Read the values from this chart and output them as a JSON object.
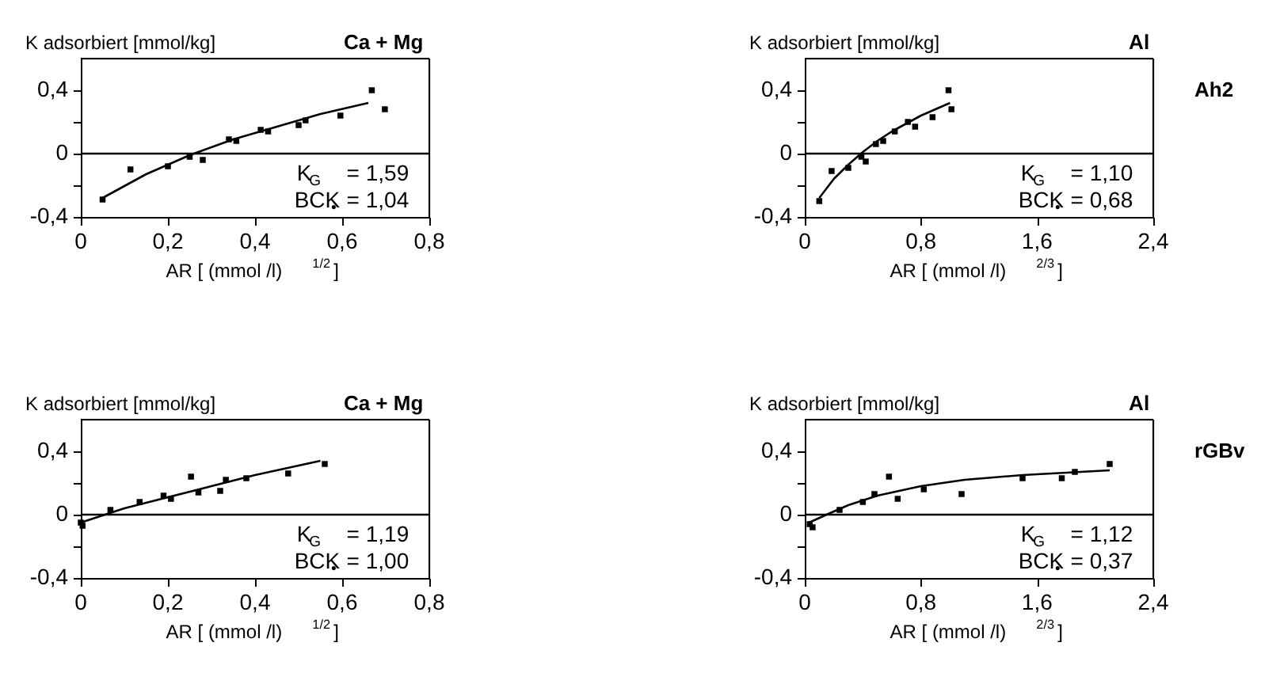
{
  "chart_data": [
    {
      "type": "scatter",
      "title": "Ca + Mg",
      "ylabel": "K adsorbiert [mmol/kg]",
      "xlabel": "AR [ (mmol /l)$^{1/2}$]",
      "xlim": [
        0,
        0.8
      ],
      "xticks": [
        0,
        {
          "value": 0.2,
          "label": "0,2"
        },
        {
          "value": 0.4,
          "label": "0,4"
        },
        {
          "value": 0.6,
          "label": "0,6"
        },
        {
          "value": 0.8,
          "label": "0,8"
        }
      ],
      "ylim": [
        -0.4,
        0.6
      ],
      "yticks": [
        {
          "value": -0.4,
          "label": "-0,4"
        },
        {
          "value": -0.2,
          "label": null
        },
        0,
        {
          "value": 0.2,
          "label": null
        },
        {
          "value": 0.4,
          "label": "0,4"
        }
      ],
      "grid": false,
      "ref_lines": [
        {
          "axis": "y",
          "value": 0,
          "color": "#000000"
        }
      ],
      "annotations": [
        "K$_{G}$    = 1,59",
        "BCK$_{•}$ = 1,04"
      ],
      "series": [
        {
          "marker": "square",
          "color": "#000000",
          "x": [
            0.05,
            0.114,
            0.2,
            0.25,
            0.28,
            0.34,
            0.357,
            0.413,
            0.43,
            0.5,
            0.516,
            0.596,
            0.668,
            0.698
          ],
          "values": [
            -0.29,
            -0.1,
            -0.08,
            -0.02,
            -0.04,
            0.09,
            0.08,
            0.15,
            0.14,
            0.18,
            0.21,
            0.24,
            0.4,
            0.28
          ]
        },
        {
          "type": "line",
          "color": "#000000",
          "x": [
            0.05,
            0.15,
            0.25,
            0.35,
            0.45,
            0.55,
            0.66
          ],
          "values": [
            -0.28,
            -0.13,
            -0.01,
            0.09,
            0.17,
            0.25,
            0.32
          ]
        }
      ]
    },
    {
      "type": "scatter",
      "title": "Al",
      "ylabel": "K adsorbiert [mmol/kg]",
      "xlabel": "AR [ (mmol /l)$^{2/3}$]",
      "xlim": [
        0,
        2.4
      ],
      "xticks": [
        0,
        {
          "value": 0.8,
          "label": "0,8"
        },
        {
          "value": 1.6,
          "label": "1,6"
        },
        {
          "value": 2.4,
          "label": "2,4"
        }
      ],
      "ylim": [
        -0.4,
        0.6
      ],
      "yticks": [
        {
          "value": -0.4,
          "label": "-0,4"
        },
        {
          "value": -0.2,
          "label": null
        },
        0,
        {
          "value": 0.2,
          "label": null
        },
        {
          "value": 0.4,
          "label": "0,4"
        }
      ],
      "grid": false,
      "ref_lines": [
        {
          "axis": "y",
          "value": 0,
          "color": "#000000"
        }
      ],
      "annotations": [
        "K$_{G}$    = 1,10",
        "BCK$_{•}$ = 0,68",
        "Ah2"
      ],
      "series": [
        {
          "marker": "square",
          "color": "#000000",
          "x": [
            0.1,
            0.185,
            0.3,
            0.39,
            0.42,
            0.49,
            0.54,
            0.62,
            0.71,
            0.76,
            0.88,
            0.99,
            1.01
          ],
          "values": [
            -0.3,
            -0.11,
            -0.09,
            -0.02,
            -0.05,
            0.06,
            0.08,
            0.14,
            0.2,
            0.17,
            0.23,
            0.4,
            0.28
          ]
        },
        {
          "type": "line",
          "color": "#000000",
          "x": [
            0.1,
            0.2,
            0.3,
            0.4,
            0.5,
            0.6,
            0.7,
            0.8,
            0.9,
            1.0
          ],
          "values": [
            -0.28,
            -0.16,
            -0.07,
            0.01,
            0.08,
            0.14,
            0.19,
            0.24,
            0.28,
            0.32
          ]
        }
      ]
    },
    {
      "type": "scatter",
      "title": "Ca + Mg",
      "ylabel": "K adsorbiert [mmol/kg]",
      "xlabel": "AR [ (mmol /l)$^{1/2}$]",
      "xlim": [
        0,
        0.8
      ],
      "xticks": [
        0,
        {
          "value": 0.2,
          "label": "0,2"
        },
        {
          "value": 0.4,
          "label": "0,4"
        },
        {
          "value": 0.6,
          "label": "0,6"
        },
        {
          "value": 0.8,
          "label": "0,8"
        }
      ],
      "ylim": [
        -0.4,
        0.6
      ],
      "yticks": [
        {
          "value": -0.4,
          "label": "-0,4"
        },
        {
          "value": -0.2,
          "label": null
        },
        0,
        {
          "value": 0.2,
          "label": null
        },
        {
          "value": 0.4,
          "label": "0,4"
        }
      ],
      "grid": false,
      "ref_lines": [
        {
          "axis": "y",
          "value": 0,
          "color": "#000000"
        }
      ],
      "annotations": [
        "K$_{G}$    = 1,19",
        "BCK$_{•}$ = 1,00"
      ],
      "series": [
        {
          "marker": "square",
          "color": "#000000",
          "x": [
            0.0,
            0.004,
            0.068,
            0.135,
            0.19,
            0.207,
            0.253,
            0.27,
            0.32,
            0.333,
            0.38,
            0.476,
            0.56
          ],
          "values": [
            -0.05,
            -0.07,
            0.03,
            0.08,
            0.12,
            0.1,
            0.24,
            0.14,
            0.15,
            0.22,
            0.23,
            0.26,
            0.32
          ]
        },
        {
          "type": "line",
          "color": "#000000",
          "x": [
            0.0,
            0.1,
            0.2,
            0.3,
            0.4,
            0.55
          ],
          "values": [
            -0.05,
            0.04,
            0.11,
            0.18,
            0.25,
            0.34
          ]
        }
      ]
    },
    {
      "type": "scatter",
      "title": "Al",
      "ylabel": "K adsorbiert [mmol/kg]",
      "xlabel": "AR [ (mmol /l)$^{2/3}$]",
      "xlim": [
        0,
        2.4
      ],
      "xticks": [
        0,
        {
          "value": 0.8,
          "label": "0,8"
        },
        {
          "value": 1.6,
          "label": "1,6"
        },
        {
          "value": 2.4,
          "label": "2,4"
        }
      ],
      "ylim": [
        -0.4,
        0.6
      ],
      "yticks": [
        {
          "value": -0.4,
          "label": "-0,4"
        },
        {
          "value": -0.2,
          "label": null
        },
        0,
        {
          "value": 0.2,
          "label": null
        },
        {
          "value": 0.4,
          "label": "0,4"
        }
      ],
      "grid": false,
      "ref_lines": [
        {
          "axis": "y",
          "value": 0,
          "color": "#000000"
        }
      ],
      "annotations": [
        "K$_{G}$    = 1,12",
        "BCK$_{•}$ = 0,37",
        "rGBv"
      ],
      "series": [
        {
          "marker": "square",
          "color": "#000000",
          "x": [
            0.034,
            0.054,
            0.24,
            0.4,
            0.48,
            0.58,
            0.64,
            0.82,
            1.08,
            1.5,
            1.77,
            1.86,
            2.1
          ],
          "values": [
            -0.06,
            -0.08,
            0.03,
            0.08,
            0.13,
            0.24,
            0.1,
            0.16,
            0.13,
            0.23,
            0.23,
            0.27,
            0.32
          ]
        },
        {
          "type": "line",
          "color": "#000000",
          "x": [
            0.03,
            0.15,
            0.3,
            0.5,
            0.8,
            1.1,
            1.5,
            2.1
          ],
          "values": [
            -0.05,
            0.0,
            0.06,
            0.12,
            0.18,
            0.22,
            0.25,
            0.28
          ]
        }
      ]
    }
  ]
}
